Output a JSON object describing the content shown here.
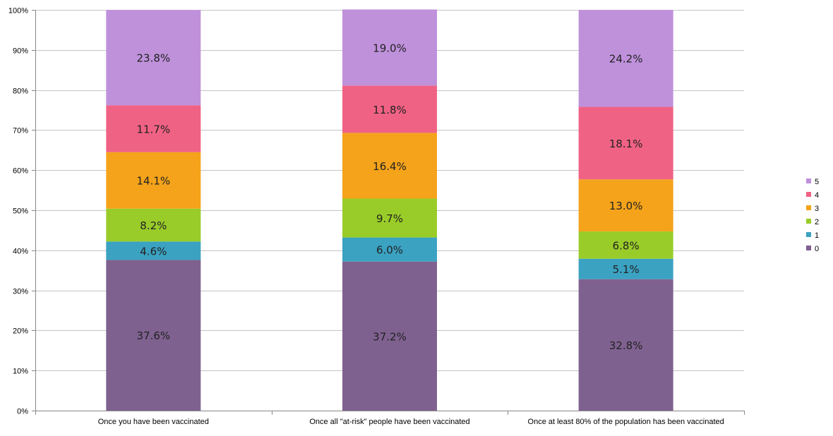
{
  "chart_data": {
    "type": "bar",
    "stacked": true,
    "percent_stacked": true,
    "categories": [
      "Once you have been vaccinated",
      "Once all \"at-risk\" people have been vaccinated",
      "Once at least 80% of the population has been vaccinated"
    ],
    "series": [
      {
        "name": "0",
        "color": "#7f6190",
        "values": [
          37.6,
          37.2,
          32.8
        ],
        "labels": [
          "37.6%",
          "37.2%",
          "32.8%"
        ]
      },
      {
        "name": "1",
        "color": "#3ba2c2",
        "values": [
          4.6,
          6.0,
          5.1
        ],
        "labels": [
          "4.6%",
          "6.0%",
          "5.1%"
        ]
      },
      {
        "name": "2",
        "color": "#99cc29",
        "values": [
          8.2,
          9.7,
          6.8
        ],
        "labels": [
          "8.2%",
          "9.7%",
          "6.8%"
        ]
      },
      {
        "name": "3",
        "color": "#f4a31a",
        "values": [
          14.1,
          16.4,
          13.0
        ],
        "labels": [
          "14.1%",
          "16.4%",
          "13.0%"
        ]
      },
      {
        "name": "4",
        "color": "#f06284",
        "values": [
          11.7,
          11.8,
          18.1
        ],
        "labels": [
          "11.7%",
          "11.8%",
          "18.1%"
        ]
      },
      {
        "name": "5",
        "color": "#bf91db",
        "values": [
          23.8,
          19.0,
          24.2
        ],
        "labels": [
          "23.8%",
          "19.0%",
          "24.2%"
        ]
      }
    ],
    "y_ticks": [
      "0%",
      "10%",
      "20%",
      "30%",
      "40%",
      "50%",
      "60%",
      "70%",
      "80%",
      "90%",
      "100%"
    ],
    "ylim": [
      0,
      100
    ],
    "grid": true,
    "legend": {
      "position": "right",
      "order": [
        "5",
        "4",
        "3",
        "2",
        "1",
        "0"
      ]
    },
    "title": "",
    "xlabel": "",
    "ylabel": ""
  }
}
